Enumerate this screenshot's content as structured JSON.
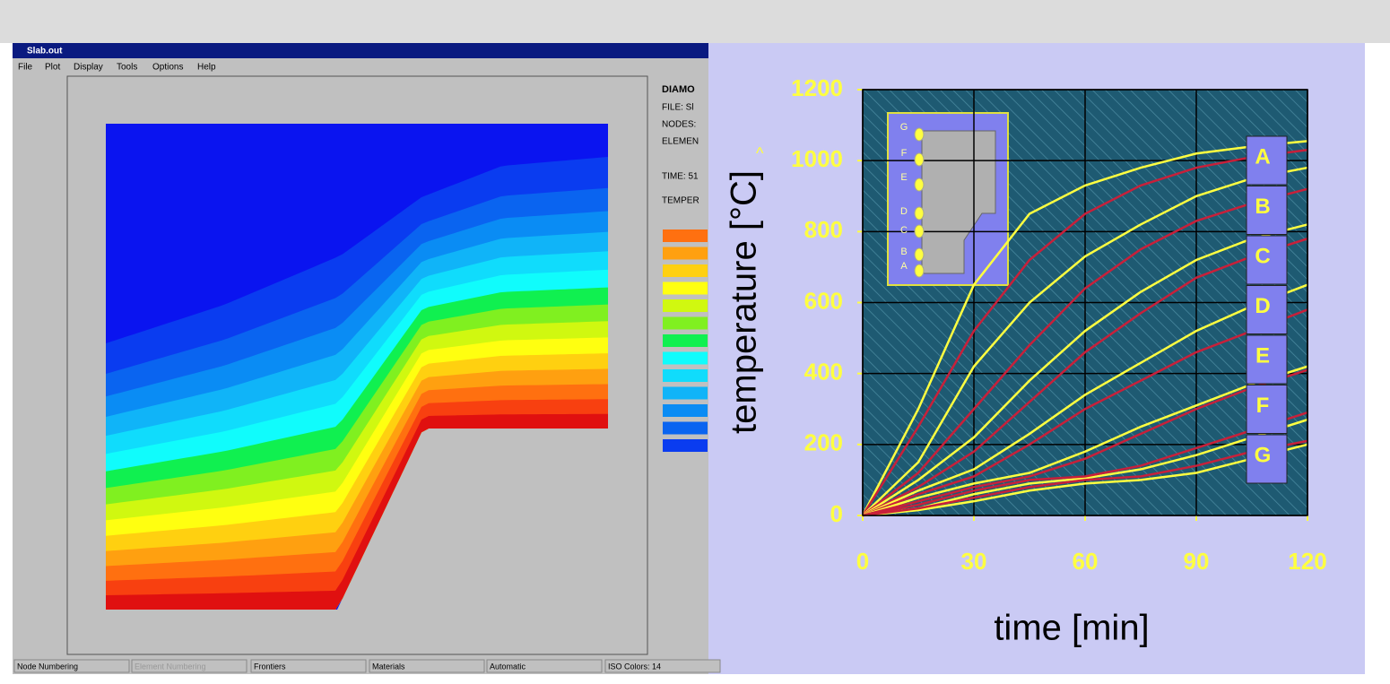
{
  "window": {
    "title": "Slab.out",
    "menu": [
      "File",
      "Plot",
      "Display",
      "Tools",
      "Options",
      "Help"
    ],
    "info": [
      "DIAMO",
      "FILE: Sl",
      "NODES:",
      "ELEMEN",
      "TIME: 51",
      "TEMPER"
    ],
    "status": [
      "Node Numbering",
      "Element Numbering",
      "Frontiers",
      "Materials",
      "Automatic",
      "ISO Colors: 14"
    ]
  },
  "chart_data": {
    "type": "line",
    "xlabel": "time [min]",
    "ylabel": "temperature [°C]",
    "annotation": "^",
    "x": [
      0,
      15,
      30,
      45,
      60,
      75,
      90,
      105,
      120
    ],
    "series": [
      {
        "color": "#ffff40",
        "values": [
          0,
          300,
          650,
          850,
          930,
          980,
          1020,
          1040,
          1055
        ]
      },
      {
        "color": "#c8203a",
        "values": [
          0,
          250,
          520,
          720,
          850,
          930,
          980,
          1010,
          1030
        ]
      },
      {
        "color": "#ffff40",
        "values": [
          0,
          150,
          420,
          600,
          730,
          820,
          900,
          950,
          980
        ]
      },
      {
        "color": "#c8203a",
        "values": [
          0,
          120,
          300,
          480,
          640,
          750,
          830,
          880,
          920
        ]
      },
      {
        "color": "#ffff40",
        "values": [
          0,
          100,
          220,
          380,
          520,
          630,
          720,
          780,
          820
        ]
      },
      {
        "color": "#c8203a",
        "values": [
          0,
          80,
          180,
          320,
          460,
          570,
          670,
          730,
          780
        ]
      },
      {
        "color": "#ffff40",
        "values": [
          0,
          70,
          130,
          230,
          340,
          430,
          520,
          590,
          650
        ]
      },
      {
        "color": "#c8203a",
        "values": [
          0,
          60,
          110,
          200,
          300,
          380,
          460,
          520,
          580
        ]
      },
      {
        "color": "#ffff40",
        "values": [
          0,
          50,
          90,
          120,
          180,
          250,
          310,
          370,
          420
        ]
      },
      {
        "color": "#c8203a",
        "values": [
          0,
          40,
          80,
          110,
          160,
          230,
          300,
          360,
          410
        ]
      },
      {
        "color": "#ffff40",
        "values": [
          0,
          20,
          60,
          90,
          105,
          130,
          170,
          220,
          270
        ]
      },
      {
        "color": "#c8203a",
        "values": [
          0,
          30,
          70,
          100,
          110,
          140,
          190,
          240,
          290
        ]
      },
      {
        "color": "#ffff40",
        "values": [
          0,
          15,
          40,
          70,
          90,
          100,
          120,
          160,
          200
        ]
      },
      {
        "color": "#c8203a",
        "values": [
          0,
          20,
          50,
          80,
          100,
          110,
          140,
          180,
          210
        ]
      }
    ],
    "xlim": [
      0,
      120
    ],
    "ylim": [
      0,
      1200
    ],
    "xticks": [
      0,
      30,
      60,
      90,
      120
    ],
    "yticks": [
      0,
      200,
      400,
      600,
      800,
      1000,
      1200
    ],
    "grid": true,
    "curve_labels": [
      "A",
      "B",
      "C",
      "D",
      "E",
      "F",
      "G"
    ],
    "inset_labels": [
      "G",
      "F",
      "E",
      "D",
      "C",
      "B",
      "A"
    ]
  }
}
